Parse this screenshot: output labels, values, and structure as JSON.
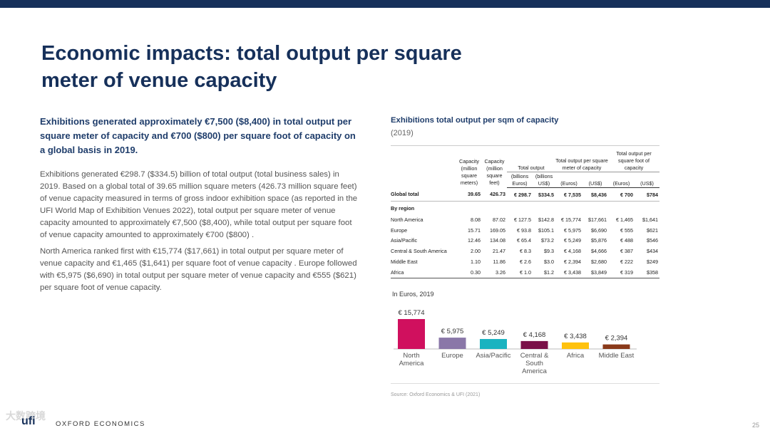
{
  "title": "Economic impacts: total output per square meter of venue capacity",
  "lead": "Exhibitions generated approximately €7,500 ($8,400) in total output per square meter of capacity and €700 ($800) per square foot of capacity on a global basis in 2019.",
  "para1": "Exhibitions generated €298.7 ($334.5) billion of total output (total business sales) in 2019. Based on a global total of 39.65 million square meters (426.73 million square feet) of venue capacity measured in terms of gross indoor exhibition space (as reported in the UFI World Map of Exhibition Venues 2022), total output per square meter of venue capacity amounted to approximately €7,500 ($8,400), while total output per square foot of venue capacity amounted to approximately €700 ($800) .",
  "para2": "North America ranked first with €15,774 ($17,661) in total output per square meter of venue capacity and €1,465 ($1,641) per square foot of venue capacity . Europe followed with €5,975 ($6,690) in total output per square meter of venue capacity and €555 ($621) per square foot of venue capacity.",
  "table": {
    "title": "Exhibitions total output per sqm of capacity",
    "subtitle": "(2019)",
    "headers": {
      "cap_sqm": "Capacity (million square meters)",
      "cap_sqft": "Capacity (million square feet)",
      "total_output": "Total output",
      "per_sqm": "Total output per square meter of capacity",
      "per_sqft": "Total output per square foot of capacity",
      "to_eur": "(billions Euros)",
      "to_usd": "(billions US$)",
      "eur": "(Euros)",
      "usd": "(US$)"
    },
    "global": [
      "Global total",
      "39.65",
      "426.73",
      "€ 298.7",
      "$334.5",
      "€ 7,535",
      "$8,436",
      "€ 700",
      "$784"
    ],
    "by_region": "By region",
    "rows": [
      [
        "North America",
        "8.08",
        "87.02",
        "€ 127.5",
        "$142.8",
        "€ 15,774",
        "$17,661",
        "€ 1,465",
        "$1,641"
      ],
      [
        "Europe",
        "15.71",
        "169.05",
        "€ 93.8",
        "$105.1",
        "€ 5,975",
        "$6,690",
        "€ 555",
        "$621"
      ],
      [
        "Asia/Pacific",
        "12.46",
        "134.08",
        "€ 65.4",
        "$73.2",
        "€ 5,249",
        "$5,876",
        "€ 488",
        "$546"
      ],
      [
        "Central & South America",
        "2.00",
        "21.47",
        "€ 8.3",
        "$9.3",
        "€ 4,168",
        "$4,666",
        "€ 387",
        "$434"
      ],
      [
        "Middle East",
        "1.10",
        "11.86",
        "€ 2.6",
        "$3.0",
        "€ 2,394",
        "$2,680",
        "€ 222",
        "$249"
      ],
      [
        "Africa",
        "0.30",
        "3.26",
        "€ 1.0",
        "$1.2",
        "€ 3,438",
        "$3,849",
        "€ 319",
        "$358"
      ]
    ]
  },
  "chart_label": "In Euros, 2019",
  "chart_data": {
    "type": "bar",
    "title": "In Euros, 2019",
    "categories": [
      "North America",
      "Europe",
      "Asia/Pacific",
      "Central & South America",
      "Africa",
      "Middle East"
    ],
    "category_lines": [
      [
        "North",
        "America"
      ],
      [
        "Europe"
      ],
      [
        "Asia/Pacific"
      ],
      [
        "Central &",
        "South",
        "America"
      ],
      [
        "Africa"
      ],
      [
        "Middle East"
      ]
    ],
    "values": [
      15774,
      5975,
      5249,
      4168,
      3438,
      2394
    ],
    "value_labels": [
      "€ 15,774",
      "€ 5,975",
      "€ 5,249",
      "€ 4,168",
      "€ 3,438",
      "€ 2,394"
    ],
    "colors": [
      "#d0105e",
      "#8a77a8",
      "#1ab3c0",
      "#7a1048",
      "#ffc20e",
      "#8a3a1a"
    ],
    "xlabel": "",
    "ylabel": "",
    "ylim": [
      0,
      15774
    ]
  },
  "source": "Source: Oxford Economics & UFI (2021)",
  "footer": {
    "logo_ufi": "ufi",
    "oxford": "OXFORD ECONOMICS",
    "page": "25",
    "watermark": "大数跨境"
  },
  "colors": {
    "navy": "#16305a",
    "lead": "#1f3d6b"
  }
}
